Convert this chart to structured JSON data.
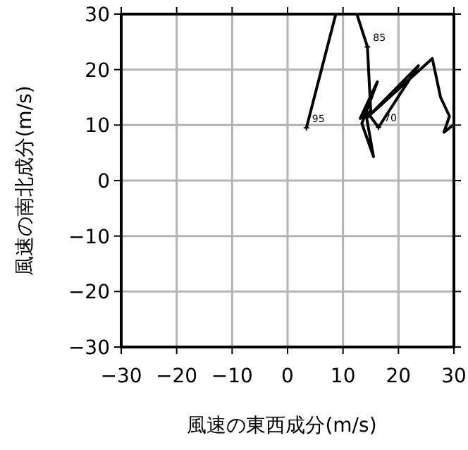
{
  "chart_data": {
    "type": "line",
    "xlabel": "風速の東西成分(m/s)",
    "ylabel": "風速の南北成分(m/s)",
    "x": [
      3.4,
      8.7,
      12.5,
      14.4,
      15.0,
      13.1,
      16.2,
      13.4,
      15.5,
      14.0,
      16.4,
      23.6,
      14.5,
      26.1,
      27.6,
      29.2,
      28.2,
      30
    ],
    "series": [
      {
        "color": "#000000",
        "values": [
          9.5,
          30,
          30,
          24.1,
          12.5,
          11.2,
          17.8,
          10.3,
          4.3,
          12.8,
          9.6,
          20.7,
          11.5,
          22.0,
          15.0,
          11.6,
          8.7,
          10.1
        ]
      }
    ],
    "xlim": [
      -30,
      30
    ],
    "ylim": [
      -30,
      30
    ],
    "xticks": [
      {
        "value": -30,
        "label": "−30"
      },
      {
        "value": -20,
        "label": "−20"
      },
      {
        "value": -10,
        "label": "−10"
      },
      0,
      10,
      20,
      30
    ],
    "yticks": [
      {
        "value": -30,
        "label": "−30"
      },
      {
        "value": -20,
        "label": "−20"
      },
      {
        "value": -10,
        "label": "−10"
      },
      0,
      10,
      20,
      30
    ],
    "grid": true,
    "marker": "none",
    "line_style": "solid",
    "annotations": [
      {
        "text": "95",
        "x": 3.4,
        "y": 9.5
      },
      {
        "text": "85",
        "x": 14.4,
        "y": 24.1
      },
      {
        "text": "70",
        "x": 16.4,
        "y": 9.6
      }
    ]
  }
}
